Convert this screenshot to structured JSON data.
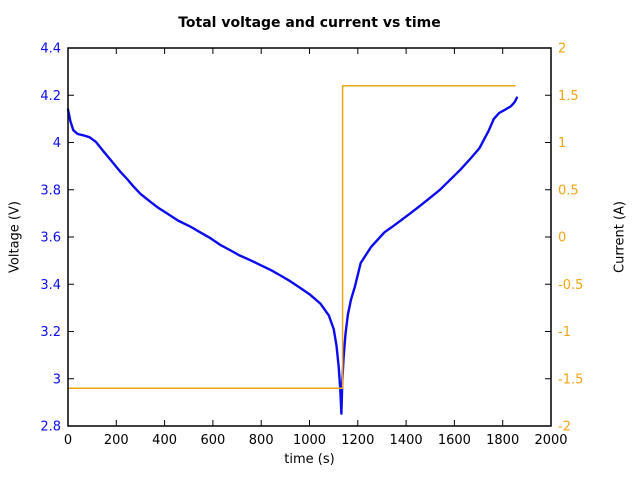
{
  "chart_data": {
    "type": "line",
    "title": "Total voltage and current vs time",
    "xlabel": "time (s)",
    "ylabel_left": "Voltage (V)",
    "ylabel_right": "Current (A)",
    "xlim": [
      0,
      2000
    ],
    "ylim_left": [
      2.8,
      4.4
    ],
    "ylim_right": [
      -2,
      2
    ],
    "grid": false,
    "legend": "none",
    "xticks": {
      "values": [
        0,
        200,
        400,
        600,
        800,
        1000,
        1200,
        1400,
        1600,
        1800,
        2000
      ],
      "labels": [
        "0",
        "200",
        "400",
        "600",
        "800",
        "1000",
        "1200",
        "1400",
        "1600",
        "1800",
        "2000"
      ]
    },
    "yticks_left": {
      "values": [
        2.8,
        3.0,
        3.2,
        3.4,
        3.6,
        3.8,
        4.0,
        4.2,
        4.4
      ],
      "labels": [
        "2.8",
        "3",
        "3.2",
        "3.4",
        "3.6",
        "3.8",
        "4",
        "4.2",
        "4.4"
      ]
    },
    "yticks_right": {
      "values": [
        -2,
        -1.5,
        -1,
        -0.5,
        0,
        0.5,
        1,
        1.5,
        2
      ],
      "labels": [
        "-2",
        "-1.5",
        "-1",
        "-0.5",
        "0",
        "0.5",
        "1",
        "1.5",
        "2"
      ]
    },
    "colors": {
      "voltage": "#0b0bf0",
      "current": "#eda513",
      "axis": "#000000"
    },
    "series": [
      {
        "name": "voltage",
        "axis": "left",
        "color": "#0b0bf0",
        "width": 2.4,
        "points": [
          [
            0,
            4.14
          ],
          [
            10,
            4.09
          ],
          [
            22,
            4.052
          ],
          [
            40,
            4.036
          ],
          [
            65,
            4.03
          ],
          [
            90,
            4.022
          ],
          [
            115,
            4.003
          ],
          [
            145,
            3.965
          ],
          [
            175,
            3.928
          ],
          [
            215,
            3.878
          ],
          [
            245,
            3.845
          ],
          [
            270,
            3.815
          ],
          [
            300,
            3.783
          ],
          [
            340,
            3.75
          ],
          [
            370,
            3.726
          ],
          [
            410,
            3.7
          ],
          [
            455,
            3.67
          ],
          [
            505,
            3.645
          ],
          [
            550,
            3.618
          ],
          [
            590,
            3.595
          ],
          [
            630,
            3.567
          ],
          [
            670,
            3.545
          ],
          [
            710,
            3.522
          ],
          [
            755,
            3.502
          ],
          [
            800,
            3.48
          ],
          [
            840,
            3.46
          ],
          [
            880,
            3.437
          ],
          [
            920,
            3.413
          ],
          [
            960,
            3.386
          ],
          [
            1000,
            3.358
          ],
          [
            1045,
            3.318
          ],
          [
            1080,
            3.268
          ],
          [
            1100,
            3.21
          ],
          [
            1112,
            3.14
          ],
          [
            1121,
            3.05
          ],
          [
            1127,
            2.96
          ],
          [
            1132,
            2.852
          ],
          [
            1136,
            2.99
          ],
          [
            1141,
            3.09
          ],
          [
            1149,
            3.19
          ],
          [
            1159,
            3.272
          ],
          [
            1172,
            3.335
          ],
          [
            1188,
            3.39
          ],
          [
            1212,
            3.49
          ],
          [
            1255,
            3.558
          ],
          [
            1310,
            3.62
          ],
          [
            1345,
            3.645
          ],
          [
            1415,
            3.698
          ],
          [
            1455,
            3.73
          ],
          [
            1495,
            3.762
          ],
          [
            1540,
            3.8
          ],
          [
            1580,
            3.84
          ],
          [
            1625,
            3.885
          ],
          [
            1665,
            3.93
          ],
          [
            1703,
            3.975
          ],
          [
            1742,
            4.05
          ],
          [
            1763,
            4.1
          ],
          [
            1785,
            4.125
          ],
          [
            1812,
            4.14
          ],
          [
            1833,
            4.153
          ],
          [
            1850,
            4.172
          ],
          [
            1859,
            4.19
          ]
        ]
      },
      {
        "name": "current",
        "axis": "right",
        "color": "#eda513",
        "width": 1.5,
        "points": [
          [
            0,
            -1.6
          ],
          [
            1137,
            -1.6
          ],
          [
            1137,
            1.6
          ],
          [
            1851,
            1.6
          ]
        ]
      }
    ]
  }
}
